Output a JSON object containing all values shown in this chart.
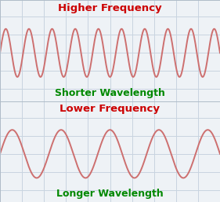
{
  "title_top": "Higher Frequency",
  "label_top": "Shorter Wavelength",
  "title_bottom": "Lower Frequency",
  "label_bottom": "Longer Wavelength",
  "title_color": "#cc0000",
  "label_color": "#008800",
  "wave_color": "#cd6f6f",
  "bg_color": "#eef2f6",
  "grid_color": "#c8d4e0",
  "high_freq_cycles": 9.5,
  "low_freq_cycles": 4.5,
  "title_fontsize": 9.5,
  "label_fontsize": 9.0,
  "wave_linewidth": 1.4,
  "border_color": "#b0bcc8"
}
